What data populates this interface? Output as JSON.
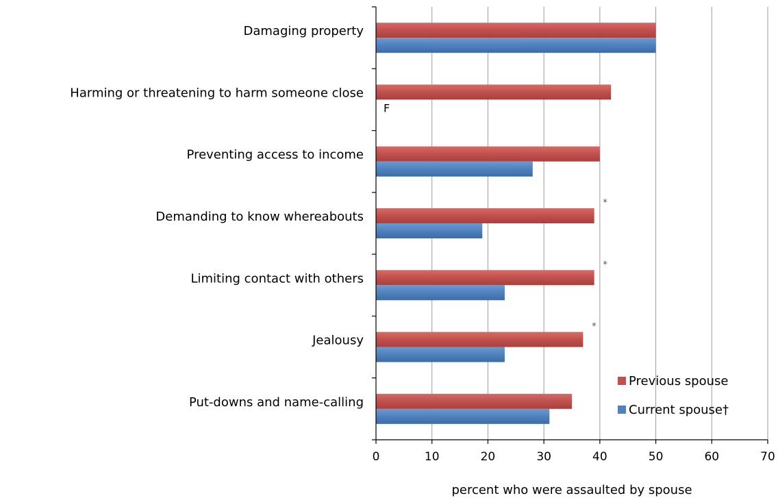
{
  "chart_data": {
    "type": "bar",
    "orientation": "horizontal",
    "categories": [
      "Damaging property",
      "Harming or threatening to harm someone close",
      "Preventing access to income",
      "Demanding to know whereabouts",
      "Limiting contact with others",
      "Jealousy",
      "Put-downs and name-calling"
    ],
    "series": [
      {
        "name": "Previous spouse",
        "color": "#c0504d",
        "values": [
          50,
          42,
          40,
          39,
          39,
          37,
          35
        ],
        "markers": [
          "",
          "",
          "",
          "*",
          "*",
          "*",
          ""
        ]
      },
      {
        "name": "Current spouse†",
        "color": "#4f81bd",
        "values": [
          50,
          null,
          28,
          19,
          23,
          23,
          31
        ],
        "markers": [
          "",
          "F",
          "",
          "",
          "",
          "",
          ""
        ]
      }
    ],
    "xlabel": "percent who were assaulted by spouse",
    "xlim": [
      0,
      70
    ],
    "xticks": [
      0,
      10,
      20,
      30,
      40,
      50,
      60,
      70
    ],
    "grid": "vertical",
    "legend": "bottom-right"
  }
}
